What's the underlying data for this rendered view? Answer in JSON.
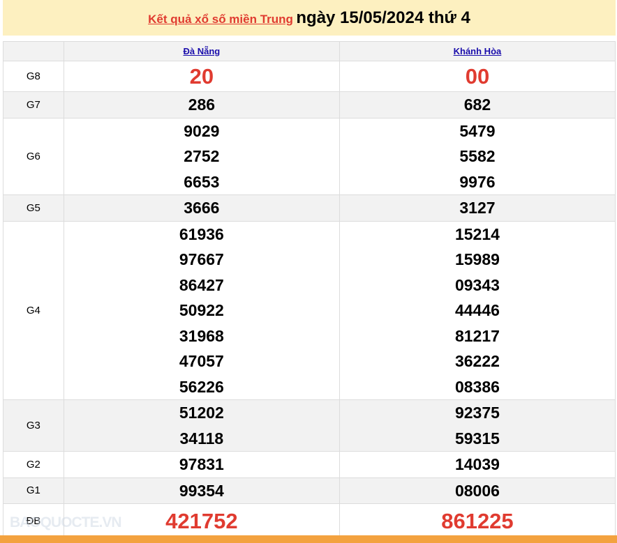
{
  "header": {
    "link": "Kết quả xổ số miền Trung",
    "date_text": "ngày 15/05/2024 thứ 4"
  },
  "provinces": [
    "Đà Nẵng",
    "Khánh Hòa"
  ],
  "rows": [
    {
      "label": "G8",
      "a": [
        "20"
      ],
      "b": [
        "00"
      ]
    },
    {
      "label": "G7",
      "a": [
        "286"
      ],
      "b": [
        "682"
      ]
    },
    {
      "label": "G6",
      "a": [
        "9029",
        "2752",
        "6653"
      ],
      "b": [
        "5479",
        "5582",
        "9976"
      ]
    },
    {
      "label": "G5",
      "a": [
        "3666"
      ],
      "b": [
        "3127"
      ]
    },
    {
      "label": "G4",
      "a": [
        "61936",
        "97667",
        "86427",
        "50922",
        "31968",
        "47057",
        "56226"
      ],
      "b": [
        "15214",
        "15989",
        "09343",
        "44446",
        "81217",
        "36222",
        "08386"
      ]
    },
    {
      "label": "G3",
      "a": [
        "51202",
        "34118"
      ],
      "b": [
        "92375",
        "59315"
      ]
    },
    {
      "label": "G2",
      "a": [
        "97831"
      ],
      "b": [
        "14039"
      ]
    },
    {
      "label": "G1",
      "a": [
        "99354"
      ],
      "b": [
        "08006"
      ]
    },
    {
      "label": "ĐB",
      "a": [
        "421752"
      ],
      "b": [
        "861225"
      ]
    }
  ],
  "watermark": "BAOQUOCTE.VN",
  "colors": {
    "accent": "#e03b30",
    "title_bg": "#fdf0c0",
    "footer": "#f3a23f",
    "link": "#1a0dab"
  }
}
